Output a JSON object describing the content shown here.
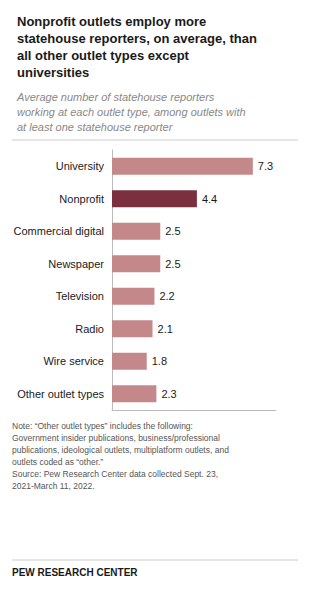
{
  "chart_data": {
    "type": "bar",
    "orientation": "horizontal",
    "title": "Nonprofit outlets employ more\nstatehouse reporters, on average, than\nall other outlet types except\nuniversities",
    "subtitle": "Average number of statehouse reporters\nworking at each outlet type, among outlets with\nat least one statehouse reporter",
    "categories": [
      "University",
      "Nonprofit",
      "Commercial digital",
      "Newspaper",
      "Television",
      "Radio",
      "Wire service",
      "Other outlet types"
    ],
    "values": [
      7.3,
      4.4,
      2.5,
      2.5,
      2.2,
      2.1,
      1.8,
      2.3
    ],
    "colors": [
      "#c4878a",
      "#7b3040",
      "#c4878a",
      "#c4878a",
      "#c4878a",
      "#c4878a",
      "#c4878a",
      "#c4878a"
    ],
    "xlim": [
      0,
      8.5
    ],
    "grid": false,
    "data_labels": true,
    "tick_labels": "y",
    "annotations": [
      "Note: “Other outlet types” includes the following:\nGovernment insider publications, business/professional\npublications, ideological outlets, multiplatform outlets, and\noutlets coded as “other.”\nSource: Pew Research Center data collected Sept. 23,\n2021-March 11, 2022.",
      "PEW RESEARCH CENTER"
    ]
  }
}
